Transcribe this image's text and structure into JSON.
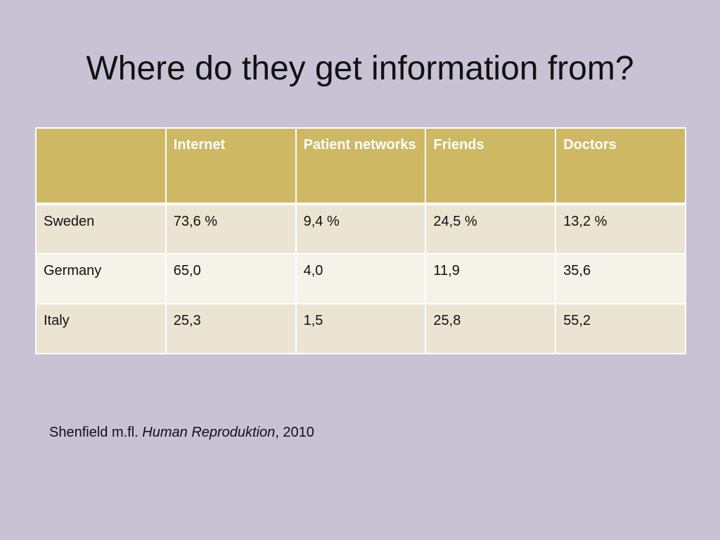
{
  "slide": {
    "title": "Where do they get information from?"
  },
  "table": {
    "headers": [
      "",
      "Internet",
      "Patient networks",
      "Friends",
      "Doctors"
    ],
    "rows": [
      [
        "Sweden",
        "73,6 %",
        "9,4 %",
        "24,5 %",
        "13,2 %"
      ],
      [
        "Germany",
        "65,0",
        "4,0",
        "11,9",
        "35,6"
      ],
      [
        "Italy",
        "25,3",
        "1,5",
        "25,8",
        "55,2"
      ]
    ]
  },
  "citation": {
    "authors": "Shenfield m.fl.",
    "journal": "Human Reproduktion",
    "year": ", 2010"
  },
  "colors": {
    "background": "#c9c2d4",
    "header_fill": "#cfb864",
    "row_band_dark": "#ebe4d2",
    "row_band_light": "#f5f2ea"
  }
}
